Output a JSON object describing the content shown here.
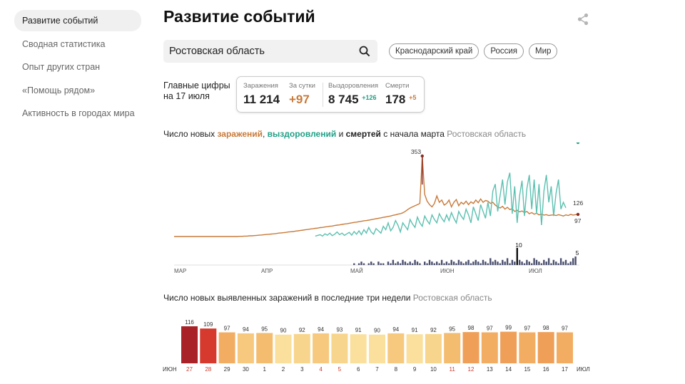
{
  "sidebar": {
    "items": [
      {
        "label": "Развитие событий",
        "active": true
      },
      {
        "label": "Сводная статистика",
        "active": false
      },
      {
        "label": "Опыт других стран",
        "active": false
      },
      {
        "label": "«Помощь рядом»",
        "active": false
      },
      {
        "label": "Активность в городах мира",
        "active": false
      }
    ]
  },
  "header": {
    "title": "Развитие событий",
    "share_icon": "share-icon"
  },
  "search": {
    "value": "Ростовская область",
    "icon": "search-icon"
  },
  "region_chips": [
    "Краснодарский край",
    "Россия",
    "Мир"
  ],
  "summary": {
    "label_line1": "Главные цифры",
    "label_line2": "на 17 июля",
    "infected_label": "Заражения",
    "infected_value": "11 214",
    "daily_label": "За сутки",
    "daily_value": "+97",
    "recovered_label": "Выздоровления",
    "recovered_value": "8 745",
    "recovered_delta": "+126",
    "deaths_label": "Смерти",
    "deaths_value": "178",
    "deaths_delta": "+5"
  },
  "colors": {
    "infections": "#c87a3a",
    "recoveries": "#5cc0b0",
    "deaths_line": "#8b2c22",
    "deaths_bars": "#4a4f6e",
    "recovered_text": "#20a086"
  },
  "chart_data": [
    {
      "type": "line",
      "title_prefix": "Число новых ",
      "title_infections": "заражений",
      "title_sep1": ", ",
      "title_recoveries": "выздоровлений",
      "title_sep2": " и ",
      "title_deaths": "смертей",
      "title_suffix": " с начала марта",
      "region": "Ростовская область",
      "month_labels": [
        "МАР",
        "АПР",
        "МАЙ",
        "ИЮН",
        "ИЮЛ"
      ],
      "annotations": {
        "peak": "353",
        "last_recoveries": "126",
        "last_infections": "97",
        "deaths_peak": "10",
        "last_deaths": "5"
      },
      "series": [
        {
          "name": "заражения",
          "values": [
            0,
            0,
            0,
            0,
            0,
            0,
            0,
            0,
            0,
            0,
            0,
            0,
            0,
            0,
            0,
            0,
            0,
            0,
            0,
            0,
            0,
            0,
            0,
            0,
            0,
            0,
            0,
            1,
            1,
            2,
            2,
            3,
            3,
            4,
            5,
            6,
            7,
            8,
            9,
            10,
            11,
            12,
            13,
            15,
            16,
            17,
            18,
            20,
            21,
            22,
            24,
            25,
            27,
            28,
            30,
            31,
            33,
            34,
            36,
            37,
            39,
            40,
            42,
            43,
            45,
            46,
            48,
            50,
            51,
            53,
            55,
            56,
            58,
            60,
            62,
            63,
            65,
            67,
            69,
            70,
            72,
            74,
            76,
            78,
            80,
            82,
            84,
            86,
            88,
            90,
            93,
            95,
            98,
            100,
            104,
            110,
            118,
            125,
            130,
            135,
            140,
            145,
            353,
            185,
            155,
            140,
            130,
            145,
            178,
            150,
            160,
            138,
            145,
            160,
            130,
            150,
            162,
            135,
            150,
            142,
            155,
            140,
            152,
            145,
            160,
            148,
            165,
            150,
            158,
            155,
            145,
            150,
            138,
            130,
            125,
            132,
            120,
            128,
            118,
            122,
            110,
            115,
            108,
            112,
            105,
            110,
            100,
            105,
            98,
            102,
            95,
            98,
            94,
            96,
            92,
            94,
            95,
            92,
            96,
            93,
            90,
            95,
            92,
            97,
            94,
            96,
            97
          ]
        },
        {
          "name": "выздоровления",
          "values": [
            0,
            0,
            0,
            0,
            0,
            0,
            0,
            0,
            0,
            0,
            0,
            0,
            0,
            0,
            0,
            0,
            0,
            0,
            0,
            0,
            0,
            0,
            0,
            0,
            0,
            0,
            0,
            0,
            0,
            0,
            0,
            0,
            0,
            0,
            0,
            0,
            0,
            0,
            0,
            0,
            0,
            0,
            0,
            0,
            0,
            0,
            0,
            0,
            0,
            0,
            0,
            0,
            0,
            0,
            0,
            0,
            0,
            0,
            2,
            5,
            8,
            2,
            12,
            6,
            15,
            4,
            10,
            20,
            8,
            15,
            5,
            12,
            18,
            6,
            22,
            10,
            25,
            8,
            30,
            15,
            40,
            20,
            10,
            35,
            25,
            15,
            45,
            30,
            60,
            25,
            40,
            70,
            50,
            20,
            60,
            45,
            30,
            75,
            55,
            40,
            85,
            60,
            45,
            90,
            70,
            55,
            95,
            75,
            60,
            100,
            80,
            65,
            95,
            70,
            105,
            80,
            60,
            110,
            90,
            75,
            120,
            95,
            60,
            130,
            100,
            70,
            140,
            110,
            80,
            150,
            90,
            200,
            230,
            110,
            180,
            250,
            140,
            240,
            280,
            100,
            220,
            60,
            180,
            245,
            90,
            210,
            270,
            120,
            250,
            100,
            230,
            50,
            200,
            270,
            150,
            220,
            90,
            190,
            250,
            120,
            150,
            126
          ]
        },
        {
          "name": "смерти",
          "values": [
            0,
            0,
            0,
            0,
            0,
            0,
            0,
            0,
            0,
            0,
            0,
            0,
            0,
            0,
            0,
            0,
            0,
            0,
            0,
            0,
            0,
            0,
            0,
            0,
            0,
            0,
            0,
            0,
            0,
            0,
            0,
            0,
            0,
            0,
            0,
            0,
            0,
            0,
            0,
            0,
            0,
            0,
            0,
            0,
            0,
            0,
            0,
            0,
            0,
            0,
            0,
            0,
            0,
            0,
            0,
            0,
            0,
            0,
            0,
            0,
            0,
            0,
            0,
            0,
            0,
            0,
            0,
            0,
            0,
            0,
            0,
            0,
            0,
            0,
            1,
            0,
            1,
            2,
            1,
            0,
            1,
            2,
            1,
            0,
            2,
            1,
            1,
            0,
            2,
            1,
            3,
            1,
            2,
            1,
            3,
            2,
            1,
            2,
            1,
            3,
            2,
            1,
            0,
            2,
            1,
            3,
            2,
            1,
            2,
            1,
            3,
            1,
            2,
            1,
            3,
            2,
            1,
            3,
            2,
            1,
            2,
            3,
            1,
            2,
            3,
            2,
            1,
            3,
            2,
            1,
            4,
            2,
            3,
            2,
            1,
            3,
            2,
            4,
            1,
            3,
            2,
            10,
            3,
            2,
            1,
            3,
            2,
            1,
            4,
            3,
            2,
            1,
            3,
            2,
            4,
            1,
            3,
            2,
            1,
            4,
            2,
            3,
            1,
            2,
            4,
            5
          ]
        }
      ]
    },
    {
      "type": "bar",
      "title": "Число новых выявленных заражений в последние три недели",
      "region": "Ростовская область",
      "month_start": "ИЮН",
      "month_end": "ИЮЛ",
      "categories": [
        "27",
        "28",
        "29",
        "30",
        "1",
        "2",
        "3",
        "4",
        "5",
        "6",
        "7",
        "8",
        "9",
        "10",
        "11",
        "12",
        "13",
        "14",
        "15",
        "16",
        "17"
      ],
      "values": [
        116,
        109,
        97,
        94,
        95,
        90,
        92,
        94,
        93,
        91,
        90,
        94,
        91,
        92,
        95,
        98,
        97,
        99,
        97,
        98,
        97
      ],
      "weekend": [
        true,
        true,
        false,
        false,
        false,
        false,
        false,
        true,
        true,
        false,
        false,
        false,
        false,
        false,
        true,
        true,
        false,
        false,
        false,
        false,
        false
      ]
    }
  ]
}
